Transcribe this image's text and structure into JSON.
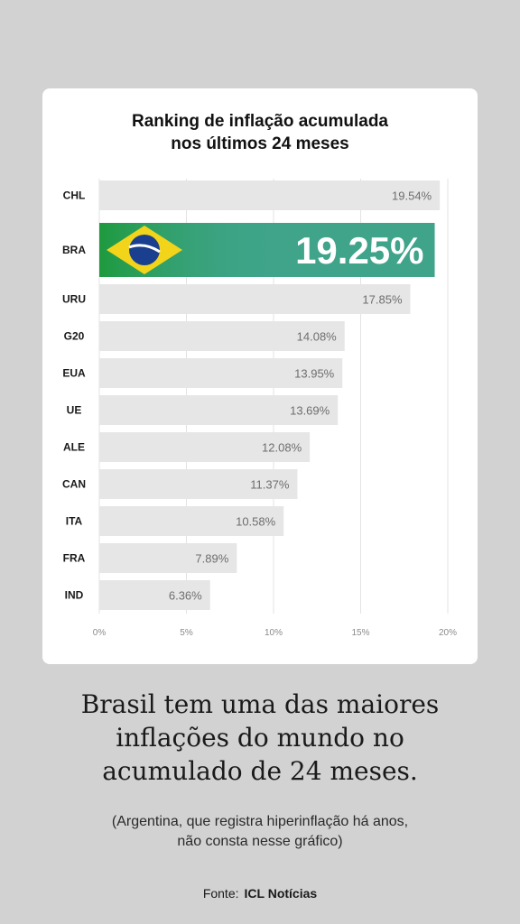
{
  "chart_data": {
    "type": "bar",
    "orientation": "horizontal",
    "title_lines": [
      "Ranking de inflação acumulada",
      "nos últimos 24 meses"
    ],
    "categories": [
      "CHL",
      "BRA",
      "URU",
      "G20",
      "EUA",
      "UE",
      "ALE",
      "CAN",
      "ITA",
      "FRA",
      "IND"
    ],
    "values": [
      19.54,
      19.25,
      17.85,
      14.08,
      13.95,
      13.69,
      12.08,
      11.37,
      10.58,
      7.89,
      6.36
    ],
    "value_labels": [
      "19.54%",
      "19.25%",
      "17.85%",
      "14.08%",
      "13.95%",
      "13.69%",
      "12.08%",
      "11.37%",
      "10.58%",
      "7.89%",
      "6.36%"
    ],
    "highlight": "BRA",
    "xlim": [
      0,
      20
    ],
    "x_ticks": [
      0,
      5,
      10,
      15,
      20
    ],
    "x_tick_labels": [
      "0%",
      "5%",
      "10%",
      "15%",
      "20%"
    ],
    "grid": true,
    "bar_color": "#e6e6e6",
    "highlight_color": "#3fa48a",
    "highlight_icon": "brazil-flag-icon"
  },
  "headline_lines": [
    "Brasil tem uma das maiores",
    "inflações do mundo no",
    "acumulado de 24 meses."
  ],
  "note_lines": [
    "(Argentina, que registra hiperinflação há anos,",
    "não consta nesse gráfico)"
  ],
  "source": {
    "label": "Fonte:",
    "name": "ICL Notícias"
  }
}
